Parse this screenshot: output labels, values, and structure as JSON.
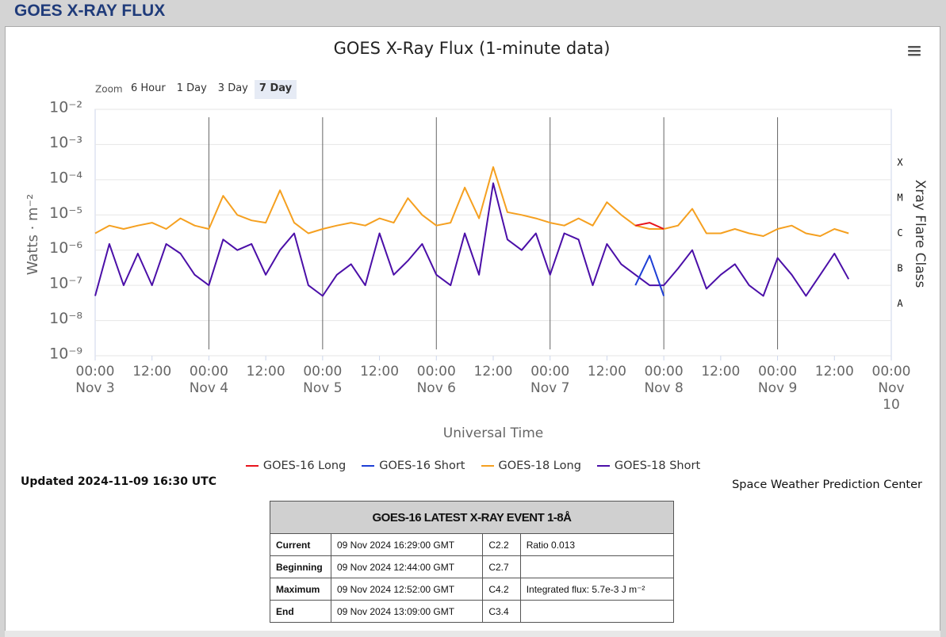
{
  "header": {
    "title": "GOES X-RAY FLUX"
  },
  "chart_data": {
    "type": "line",
    "title": "GOES X-Ray Flux (1-minute data)",
    "range_selector": {
      "label": "Zoom",
      "buttons": [
        "6 Hour",
        "1 Day",
        "3 Day",
        "7 Day"
      ],
      "selected": 3
    },
    "x_label": "Universal Time",
    "y_label": "Watts · m⁻²",
    "y2_label": "Xray Flare Class",
    "log_y": true,
    "grid": true,
    "legend": "bottom",
    "xlim": [
      "Nov 3 00:00",
      "Nov 10 00:00"
    ],
    "xticks": [
      {
        "value": "Nov 3 00:00",
        "label": "00:00\nNov 3"
      },
      {
        "value": "Nov 3 12:00",
        "label": "12:00"
      },
      {
        "value": "Nov 4 00:00",
        "label": "00:00\nNov 4"
      },
      {
        "value": "Nov 4 12:00",
        "label": "12:00"
      },
      {
        "value": "Nov 5 00:00",
        "label": "00:00\nNov 5"
      },
      {
        "value": "Nov 5 12:00",
        "label": "12:00"
      },
      {
        "value": "Nov 6 00:00",
        "label": "00:00\nNov 6"
      },
      {
        "value": "Nov 6 12:00",
        "label": "12:00"
      },
      {
        "value": "Nov 7 00:00",
        "label": "00:00\nNov 7"
      },
      {
        "value": "Nov 7 12:00",
        "label": "12:00"
      },
      {
        "value": "Nov 8 00:00",
        "label": "00:00\nNov 8"
      },
      {
        "value": "Nov 8 12:00",
        "label": "12:00"
      },
      {
        "value": "Nov 9 00:00",
        "label": "00:00\nNov 9"
      },
      {
        "value": "Nov 9 12:00",
        "label": "12:00"
      },
      {
        "value": "Nov 10 00:00",
        "label": "00:00\nNov\n10"
      }
    ],
    "ylim": [
      1e-09,
      0.01
    ],
    "yticks": [
      {
        "value": 1e-09,
        "label": "10⁻⁹"
      },
      {
        "value": 1e-08,
        "label": "10⁻⁸"
      },
      {
        "value": 1e-07,
        "label": "10⁻⁷"
      },
      {
        "value": 1e-06,
        "label": "10⁻⁶"
      },
      {
        "value": 1e-05,
        "label": "10⁻⁵"
      },
      {
        "value": 0.0001,
        "label": "10⁻⁴"
      },
      {
        "value": 0.001,
        "label": "10⁻³"
      },
      {
        "value": 0.01,
        "label": "10⁻²"
      }
    ],
    "y2lim": [
      1e-09,
      0.01
    ],
    "y2ticks": [
      {
        "value": 3e-08,
        "label": "A"
      },
      {
        "value": 3e-07,
        "label": "B"
      },
      {
        "value": 3e-06,
        "label": "C"
      },
      {
        "value": 3e-05,
        "label": "M"
      },
      {
        "value": 0.0003,
        "label": "X"
      }
    ],
    "x": [
      "Nov 3 00:00",
      "Nov 3 03:00",
      "Nov 3 06:00",
      "Nov 3 09:00",
      "Nov 3 12:00",
      "Nov 3 15:00",
      "Nov 3 18:00",
      "Nov 3 21:00",
      "Nov 4 00:00",
      "Nov 4 03:00",
      "Nov 4 06:00",
      "Nov 4 09:00",
      "Nov 4 12:00",
      "Nov 4 15:00",
      "Nov 4 18:00",
      "Nov 4 21:00",
      "Nov 5 00:00",
      "Nov 5 03:00",
      "Nov 5 06:00",
      "Nov 5 09:00",
      "Nov 5 12:00",
      "Nov 5 15:00",
      "Nov 5 18:00",
      "Nov 5 21:00",
      "Nov 6 00:00",
      "Nov 6 03:00",
      "Nov 6 06:00",
      "Nov 6 09:00",
      "Nov 6 12:00",
      "Nov 6 15:00",
      "Nov 6 18:00",
      "Nov 6 21:00",
      "Nov 7 00:00",
      "Nov 7 03:00",
      "Nov 7 06:00",
      "Nov 7 09:00",
      "Nov 7 12:00",
      "Nov 7 15:00",
      "Nov 7 18:00",
      "Nov 7 21:00",
      "Nov 8 00:00",
      "Nov 8 03:00",
      "Nov 8 06:00",
      "Nov 8 09:00",
      "Nov 8 12:00",
      "Nov 8 15:00",
      "Nov 8 18:00",
      "Nov 8 21:00",
      "Nov 9 00:00",
      "Nov 9 03:00",
      "Nov 9 06:00",
      "Nov 9 09:00",
      "Nov 9 12:00",
      "Nov 9 15:00"
    ],
    "series": [
      {
        "name": "GOES-16 Long",
        "color": "#e8141c",
        "values": [
          null,
          null,
          null,
          null,
          null,
          null,
          null,
          null,
          null,
          null,
          null,
          null,
          null,
          null,
          null,
          null,
          null,
          null,
          null,
          null,
          null,
          null,
          null,
          null,
          null,
          null,
          null,
          null,
          null,
          null,
          null,
          null,
          null,
          null,
          null,
          null,
          null,
          null,
          5e-06,
          6e-06,
          4e-06,
          null,
          null,
          null,
          null,
          null,
          null,
          null,
          null,
          null,
          null,
          null,
          null,
          null
        ]
      },
      {
        "name": "GOES-16 Short",
        "color": "#1e3fd6",
        "values": [
          null,
          null,
          null,
          null,
          null,
          null,
          null,
          null,
          null,
          null,
          null,
          null,
          null,
          null,
          null,
          null,
          null,
          null,
          null,
          null,
          null,
          null,
          null,
          null,
          null,
          null,
          null,
          null,
          null,
          null,
          null,
          null,
          null,
          null,
          null,
          null,
          null,
          null,
          1e-07,
          7e-07,
          5e-08,
          null,
          null,
          null,
          null,
          null,
          null,
          null,
          null,
          null,
          null,
          null,
          null,
          null
        ]
      },
      {
        "name": "GOES-18 Long",
        "color": "#f5a020",
        "values": [
          3e-06,
          5e-06,
          4e-06,
          5e-06,
          6e-06,
          4e-06,
          8e-06,
          5e-06,
          4e-06,
          3.5e-05,
          1e-05,
          7e-06,
          6e-06,
          5e-05,
          6e-06,
          3e-06,
          4e-06,
          5e-06,
          6e-06,
          5e-06,
          8e-06,
          6e-06,
          3e-05,
          1e-05,
          5e-06,
          6e-06,
          6e-05,
          8e-06,
          0.00023,
          1.2e-05,
          1e-05,
          8e-06,
          6e-06,
          5e-06,
          8e-06,
          5e-06,
          2.3e-05,
          1e-05,
          5e-06,
          4e-06,
          4e-06,
          5e-06,
          1.5e-05,
          3e-06,
          3e-06,
          4e-06,
          3e-06,
          2.5e-06,
          4e-06,
          5e-06,
          3e-06,
          2.5e-06,
          4e-06,
          3e-06
        ]
      },
      {
        "name": "GOES-18 Short",
        "color": "#4b0fa8",
        "values": [
          5e-08,
          1.5e-06,
          1e-07,
          8e-07,
          1e-07,
          1.5e-06,
          8e-07,
          2e-07,
          1e-07,
          2e-06,
          1e-06,
          1.5e-06,
          2e-07,
          1e-06,
          3e-06,
          1e-07,
          5e-08,
          2e-07,
          4e-07,
          1e-07,
          3e-06,
          2e-07,
          5e-07,
          1.5e-06,
          2e-07,
          1e-07,
          3e-06,
          2e-07,
          8e-05,
          2e-06,
          1e-06,
          3e-06,
          2e-07,
          3e-06,
          2e-06,
          1e-07,
          1.5e-06,
          4e-07,
          2e-07,
          1e-07,
          1e-07,
          3e-07,
          1e-06,
          8e-08,
          2e-07,
          4e-07,
          1e-07,
          5e-08,
          6e-07,
          2e-07,
          5e-08,
          2e-07,
          8e-07,
          1.5e-07
        ]
      }
    ]
  },
  "updated": "Updated 2024-11-09 16:30 UTC",
  "credit": "Space Weather Prediction Center",
  "table": {
    "title": "GOES-16 LATEST X-RAY EVENT 1-8Å",
    "rows": [
      [
        "Current",
        "09 Nov 2024 16:29:00 GMT",
        "C2.2",
        "Ratio 0.013"
      ],
      [
        "Beginning",
        "09 Nov 2024 12:44:00 GMT",
        "C2.7"
      ],
      [
        "Maximum",
        "09 Nov 2024 12:52:00 GMT",
        "C4.2",
        "Integrated flux: 5.7e-3 J m⁻²"
      ],
      [
        "End",
        "09 Nov 2024 13:09:00 GMT",
        "C3.4"
      ]
    ]
  }
}
